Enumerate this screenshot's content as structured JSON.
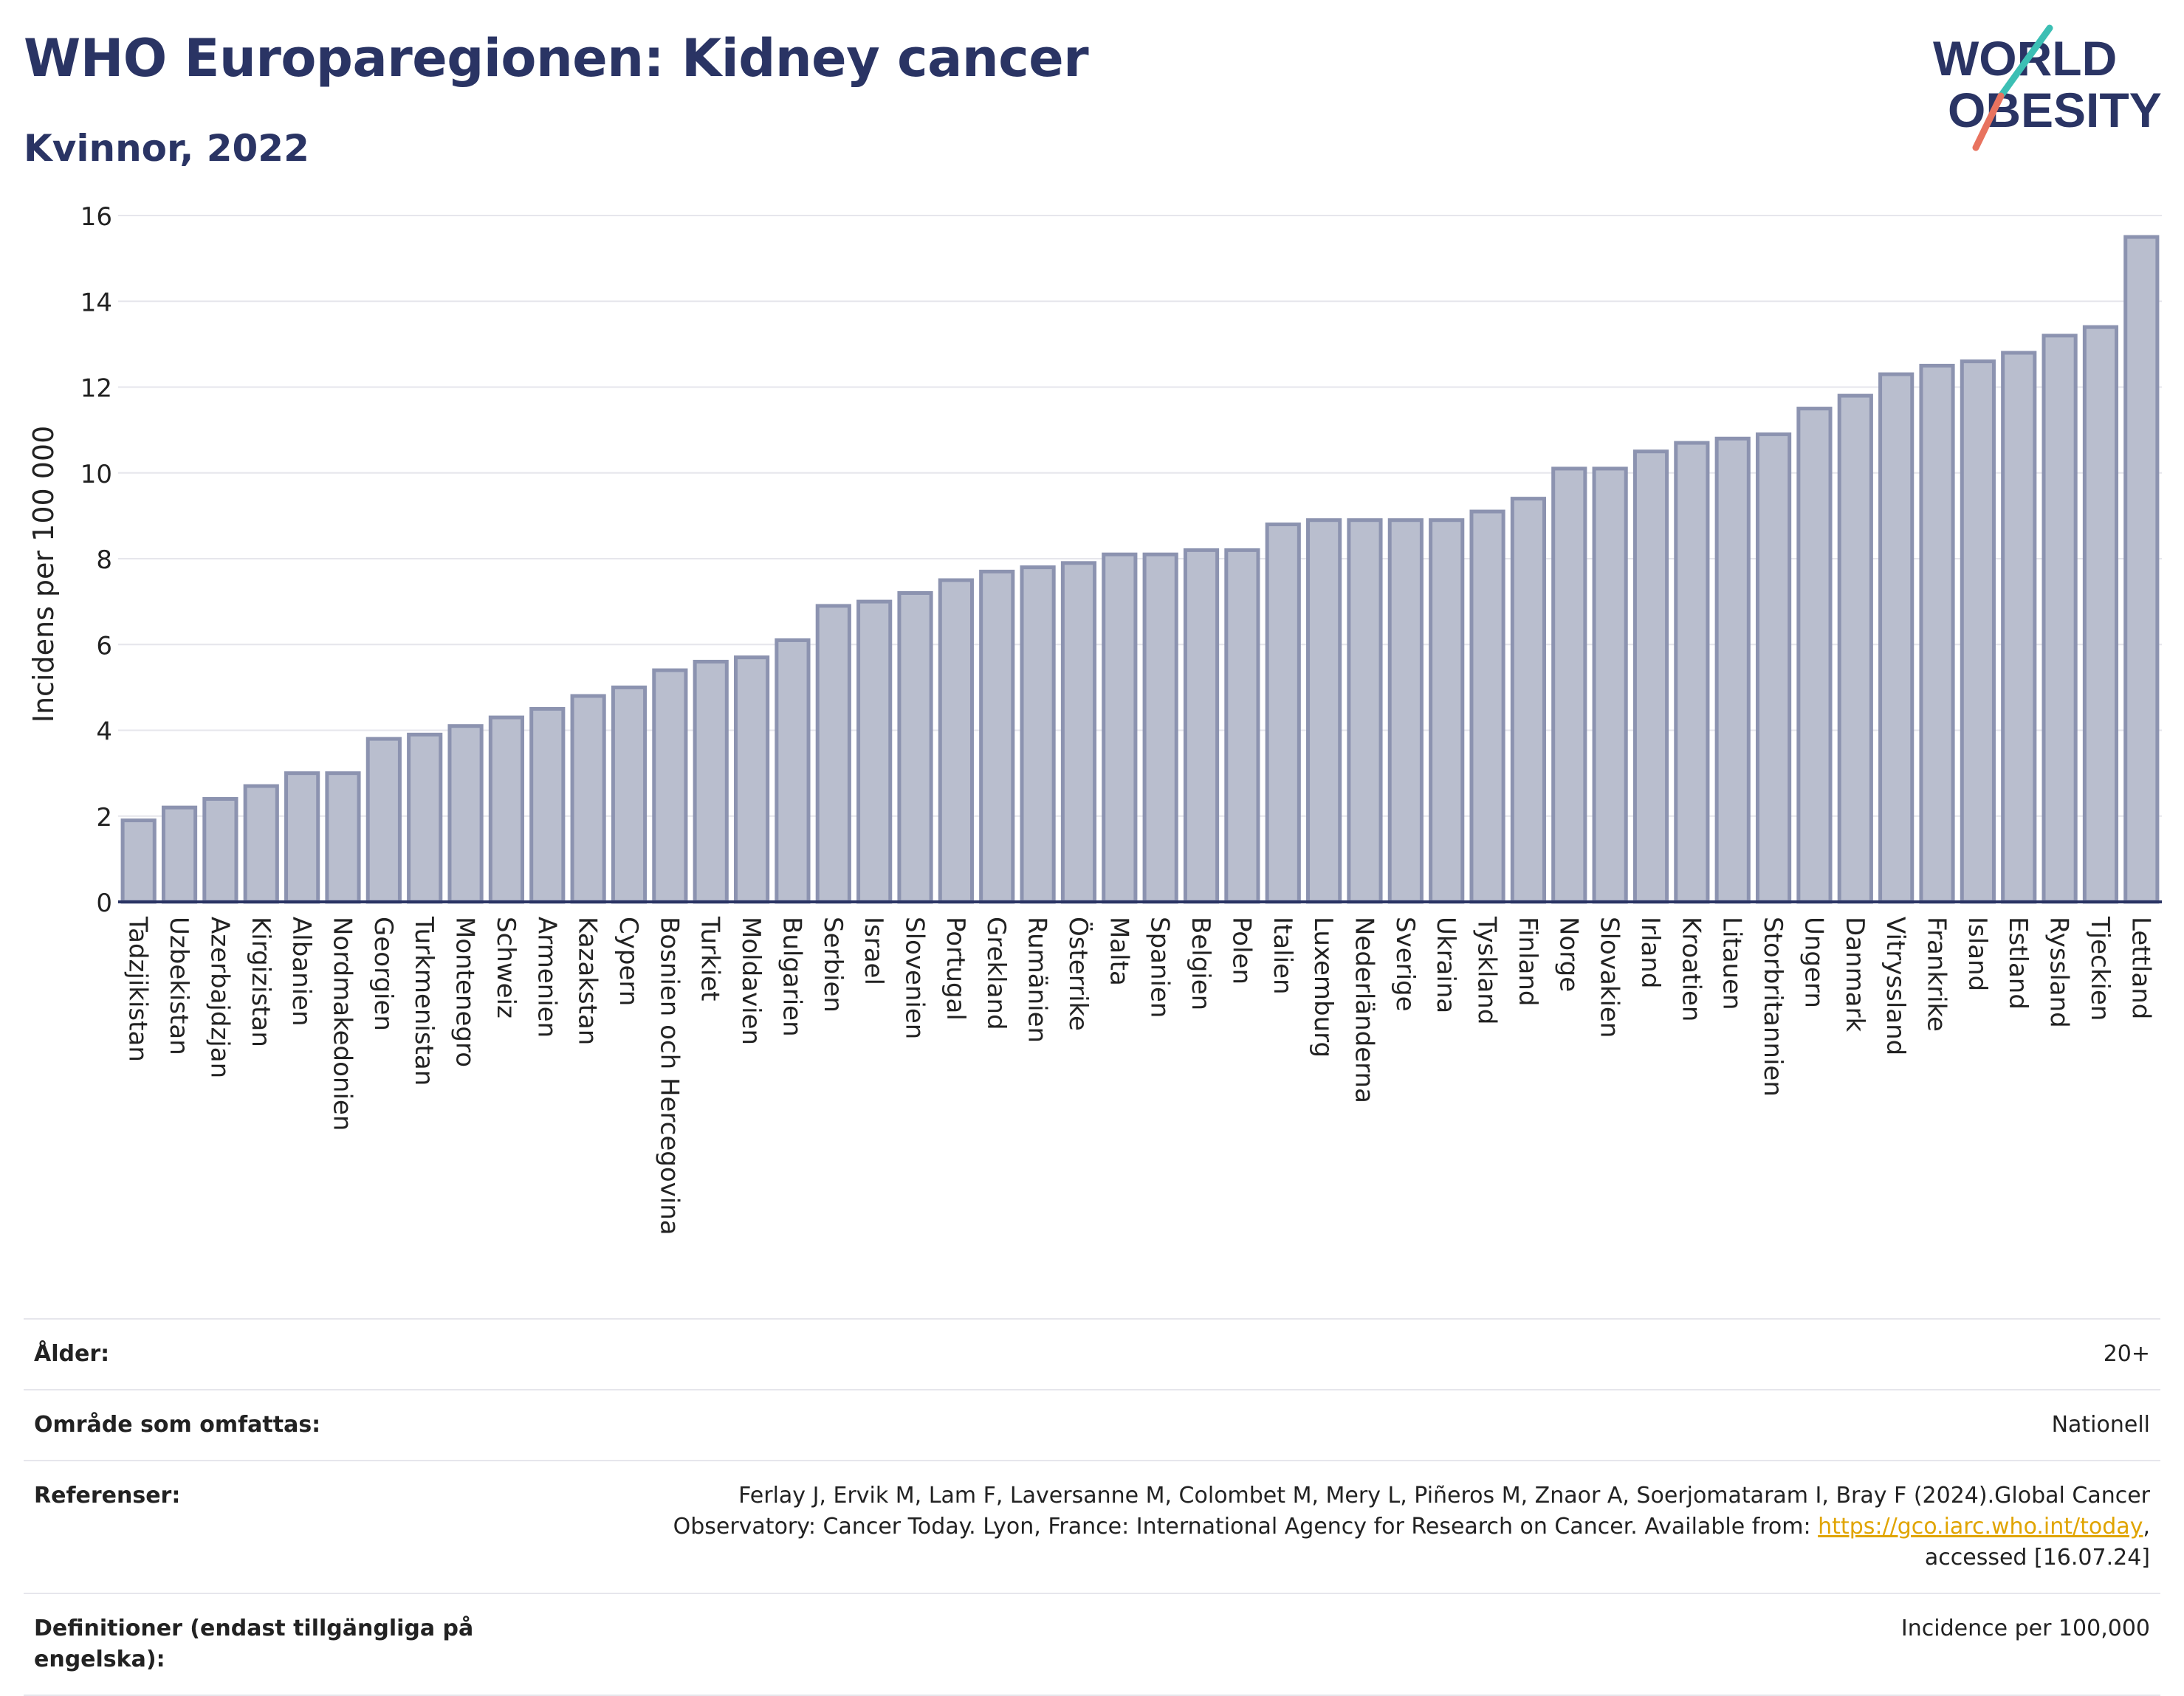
{
  "header": {
    "title": "WHO Europaregionen: Kidney cancer",
    "subtitle": "Kvinnor, 2022",
    "logo_text": [
      "WORLD",
      "OBESITY"
    ]
  },
  "colors": {
    "title": "#2a3464",
    "bar_fill": "#b9bece",
    "bar_stroke": "#8c93b0",
    "axis": "#2a3464",
    "grid": "#e6e6ec",
    "link": "#e0a400",
    "logo_teal": "#3cbfb4",
    "logo_coral": "#e8735f"
  },
  "chart_data": {
    "type": "bar",
    "ylabel": "Incidens per 100 000",
    "xlabel": "",
    "ylim": [
      0,
      16
    ],
    "yticks": [
      0,
      2,
      4,
      6,
      8,
      10,
      12,
      14,
      16
    ],
    "grid": true,
    "categories": [
      "Tadzjikistan",
      "Uzbekistan",
      "Azerbajdzjan",
      "Kirgizistan",
      "Albanien",
      "Nordmakedonien",
      "Georgien",
      "Turkmenistan",
      "Montenegro",
      "Schweiz",
      "Armenien",
      "Kazakstan",
      "Cypern",
      "Bosnien och Hercegovina",
      "Turkiet",
      "Moldavien",
      "Bulgarien",
      "Serbien",
      "Israel",
      "Slovenien",
      "Portugal",
      "Grekland",
      "Rumänien",
      "Österrike",
      "Malta",
      "Spanien",
      "Belgien",
      "Polen",
      "Italien",
      "Luxemburg",
      "Nederländerna",
      "Sverige",
      "Ukraina",
      "Tyskland",
      "Finland",
      "Norge",
      "Slovakien",
      "Irland",
      "Kroatien",
      "Litauen",
      "Storbritannien",
      "Ungern",
      "Danmark",
      "Vitryssland",
      "Frankrike",
      "Island",
      "Estland",
      "Ryssland",
      "Tjeckien",
      "Lettland"
    ],
    "values": [
      1.9,
      2.2,
      2.4,
      2.7,
      3.0,
      3.0,
      3.8,
      3.9,
      4.1,
      4.3,
      4.5,
      4.8,
      5.0,
      5.4,
      5.6,
      5.7,
      6.1,
      6.9,
      7.0,
      7.2,
      7.5,
      7.7,
      7.8,
      7.9,
      8.1,
      8.1,
      8.2,
      8.2,
      8.8,
      8.9,
      8.9,
      8.9,
      8.9,
      9.1,
      9.4,
      10.1,
      10.1,
      10.5,
      10.7,
      10.8,
      10.9,
      11.5,
      11.8,
      12.3,
      12.5,
      12.6,
      12.8,
      13.2,
      13.4,
      15.5
    ]
  },
  "meta": {
    "age_label": "Ålder:",
    "age_value": "20+",
    "area_label": "Område som omfattas:",
    "area_value": "Nationell",
    "refs_label": "Referenser:",
    "refs_line1": "Ferlay J, Ervik M, Lam F, Laversanne M, Colombet M, Mery L, Piñeros M, Znaor A, Soerjomataram I, Bray F (2024).Global Cancer",
    "refs_line2": "Observatory: Cancer Today. Lyon, France: International Agency for Research on Cancer. Available from: ",
    "refs_link": "https://gco.iarc.who.int/today",
    "refs_line2_end": ",",
    "refs_line3": "accessed [16.07.24]",
    "defs_label": "Definitioner (endast tillgängliga på engelska):",
    "defs_value": "Incidence per 100,000"
  }
}
